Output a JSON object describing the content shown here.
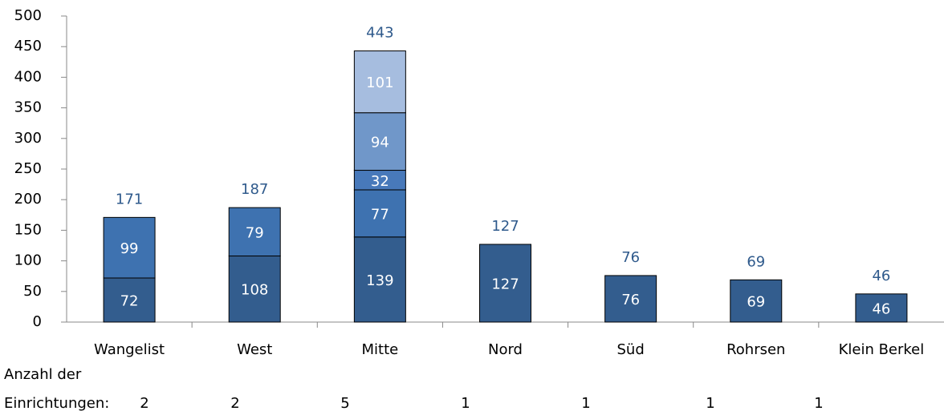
{
  "chart_data": {
    "type": "stacked_bar",
    "categories": [
      "Wangelist",
      "West",
      "Mitte",
      "Nord",
      "Süd",
      "Rohrsen",
      "Klein Berkel"
    ],
    "series": [
      {
        "color": "#335d8e",
        "values": [
          72,
          108,
          139,
          127,
          76,
          69,
          46
        ]
      },
      {
        "color": "#3e72b0",
        "values": [
          99,
          79,
          77,
          null,
          null,
          null,
          null
        ]
      },
      {
        "color": "#4879ba",
        "values": [
          null,
          null,
          32,
          null,
          null,
          null,
          null
        ]
      },
      {
        "color": "#7097c9",
        "values": [
          null,
          null,
          94,
          null,
          null,
          null,
          null
        ]
      },
      {
        "color": "#a6bddf",
        "values": [
          null,
          null,
          101,
          null,
          null,
          null,
          null
        ]
      }
    ],
    "totals": [
      171,
      187,
      443,
      127,
      76,
      69,
      46
    ],
    "count_label": [
      "Anzahl der",
      "Einrichtungen:"
    ],
    "counts": [
      2,
      2,
      5,
      1,
      1,
      1,
      1
    ],
    "ylim": [
      0,
      500
    ],
    "yticks": [
      0,
      50,
      100,
      150,
      200,
      250,
      300,
      350,
      400,
      450,
      500
    ]
  }
}
